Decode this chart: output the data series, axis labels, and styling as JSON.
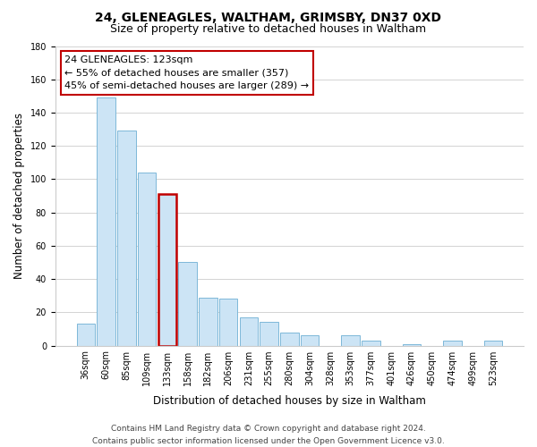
{
  "title": "24, GLENEAGLES, WALTHAM, GRIMSBY, DN37 0XD",
  "subtitle": "Size of property relative to detached houses in Waltham",
  "xlabel": "Distribution of detached houses by size in Waltham",
  "ylabel": "Number of detached properties",
  "bar_labels": [
    "36sqm",
    "60sqm",
    "85sqm",
    "109sqm",
    "133sqm",
    "158sqm",
    "182sqm",
    "206sqm",
    "231sqm",
    "255sqm",
    "280sqm",
    "304sqm",
    "328sqm",
    "353sqm",
    "377sqm",
    "401sqm",
    "426sqm",
    "450sqm",
    "474sqm",
    "499sqm",
    "523sqm"
  ],
  "bar_values": [
    13,
    149,
    129,
    104,
    91,
    50,
    29,
    28,
    17,
    14,
    8,
    6,
    0,
    6,
    3,
    0,
    1,
    0,
    3,
    0,
    3
  ],
  "bar_color": "#cce4f5",
  "bar_edge_color": "#7db8d8",
  "highlight_index": 4,
  "highlight_edge_color": "#c00000",
  "annotation_box_edge_color": "#c00000",
  "annotation_text_line1": "24 GLENEAGLES: 123sqm",
  "annotation_text_line2": "← 55% of detached houses are smaller (357)",
  "annotation_text_line3": "45% of semi-detached houses are larger (289) →",
  "ylim": [
    0,
    180
  ],
  "yticks": [
    0,
    20,
    40,
    60,
    80,
    100,
    120,
    140,
    160,
    180
  ],
  "footer_line1": "Contains HM Land Registry data © Crown copyright and database right 2024.",
  "footer_line2": "Contains public sector information licensed under the Open Government Licence v3.0.",
  "bg_color": "#ffffff",
  "plot_bg_color": "#ffffff",
  "grid_color": "#cccccc",
  "title_fontsize": 10,
  "subtitle_fontsize": 9,
  "axis_label_fontsize": 8.5,
  "tick_fontsize": 7,
  "annotation_fontsize": 8,
  "footer_fontsize": 6.5
}
